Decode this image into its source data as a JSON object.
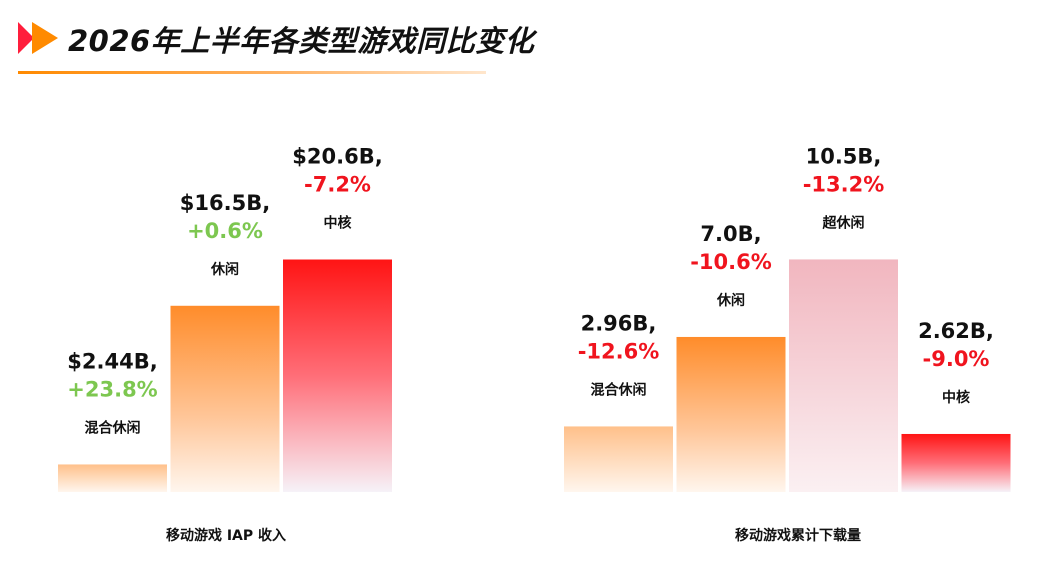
{
  "header": {
    "title": "2026年上半年各类型游戏同比变化"
  },
  "colors": {
    "brand_orange": "#FF8A00",
    "brand_red": "#FF1E3C",
    "positive": "#7DC750",
    "negative": "#F0141E",
    "text": "#111111"
  },
  "chart_data": [
    {
      "type": "bar",
      "title": "移动游戏 IAP 收入",
      "unit": "$B",
      "categories": [
        "混合休闲",
        "休闲",
        "中核"
      ],
      "values": [
        2.44,
        16.5,
        20.6
      ],
      "value_labels": [
        "$2.44B,",
        "$16.5B,",
        "$20.6B,"
      ],
      "changes": [
        "+23.8%",
        "+0.6%",
        "-7.2%"
      ],
      "change_values": [
        23.8,
        0.6,
        -7.2
      ],
      "bar_colors": [
        "light-orange",
        "orange",
        "red"
      ],
      "ylim": [
        0,
        21
      ]
    },
    {
      "type": "bar",
      "title": "移动游戏累计下载量",
      "unit": "B",
      "categories": [
        "混合休闲",
        "休闲",
        "超休闲",
        "中核"
      ],
      "values": [
        2.96,
        7.0,
        10.5,
        2.62
      ],
      "value_labels": [
        "2.96B,",
        "7.0B,",
        "10.5B,",
        "2.62B,"
      ],
      "changes": [
        "-12.6%",
        "-10.6%",
        "-13.2%",
        "-9.0%"
      ],
      "change_values": [
        -12.6,
        -10.6,
        -13.2,
        -9.0
      ],
      "bar_colors": [
        "light-orange",
        "orange",
        "pink",
        "red"
      ],
      "ylim": [
        0,
        10.7
      ]
    }
  ]
}
